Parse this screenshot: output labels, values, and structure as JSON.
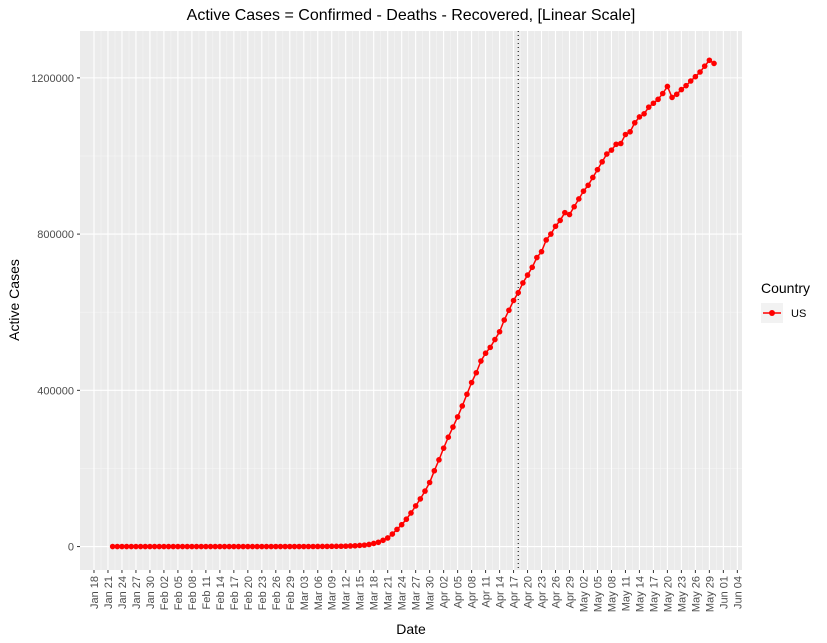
{
  "chart_data": {
    "type": "line",
    "title": "Active Cases = Confirmed - Deaths - Recovered, [Linear Scale]",
    "xlabel": "Date",
    "ylabel": "Active Cases",
    "x_start_date": "2020-01-22",
    "x_tick_labels": [
      "Jan 18",
      "Jan 21",
      "Jan 24",
      "Jan 27",
      "Jan 30",
      "Feb 02",
      "Feb 05",
      "Feb 08",
      "Feb 11",
      "Feb 14",
      "Feb 17",
      "Feb 20",
      "Feb 23",
      "Feb 26",
      "Feb 29",
      "Mar 03",
      "Mar 06",
      "Mar 09",
      "Mar 12",
      "Mar 15",
      "Mar 18",
      "Mar 21",
      "Mar 24",
      "Mar 27",
      "Mar 30",
      "Apr 02",
      "Apr 05",
      "Apr 08",
      "Apr 11",
      "Apr 14",
      "Apr 17",
      "Apr 20",
      "Apr 23",
      "Apr 26",
      "Apr 29",
      "May 02",
      "May 05",
      "May 08",
      "May 11",
      "May 14",
      "May 17",
      "May 20",
      "May 23",
      "May 26",
      "May 29",
      "Jun 01",
      "Jun 04"
    ],
    "x_tick_dates": [
      "2020-01-18",
      "2020-01-21",
      "2020-01-24",
      "2020-01-27",
      "2020-01-30",
      "2020-02-02",
      "2020-02-05",
      "2020-02-08",
      "2020-02-11",
      "2020-02-14",
      "2020-02-17",
      "2020-02-20",
      "2020-02-23",
      "2020-02-26",
      "2020-02-29",
      "2020-03-03",
      "2020-03-06",
      "2020-03-09",
      "2020-03-12",
      "2020-03-15",
      "2020-03-18",
      "2020-03-21",
      "2020-03-24",
      "2020-03-27",
      "2020-03-30",
      "2020-04-02",
      "2020-04-05",
      "2020-04-08",
      "2020-04-11",
      "2020-04-14",
      "2020-04-17",
      "2020-04-20",
      "2020-04-23",
      "2020-04-26",
      "2020-04-29",
      "2020-05-02",
      "2020-05-05",
      "2020-05-08",
      "2020-05-11",
      "2020-05-14",
      "2020-05-17",
      "2020-05-20",
      "2020-05-23",
      "2020-05-26",
      "2020-05-29",
      "2020-06-01",
      "2020-06-04"
    ],
    "xlim": [
      "2020-01-15",
      "2020-06-05"
    ],
    "vline": {
      "date": "2020-04-18",
      "style": "dotted"
    },
    "y_ticks": [
      0,
      400000,
      800000,
      1200000
    ],
    "y_tick_labels": [
      "0",
      "400000",
      "800000",
      "1200000"
    ],
    "ylim": [
      -60000,
      1320000
    ],
    "grid": true,
    "legend": {
      "title": "Country",
      "position": "right"
    },
    "series": [
      {
        "name": "US",
        "color": "#ff0000",
        "values": [
          1,
          1,
          2,
          2,
          5,
          5,
          5,
          5,
          5,
          7,
          8,
          8,
          11,
          11,
          11,
          11,
          11,
          11,
          11,
          11,
          12,
          12,
          13,
          13,
          13,
          13,
          13,
          13,
          13,
          13,
          15,
          15,
          15,
          51,
          51,
          57,
          58,
          60,
          68,
          74,
          98,
          118,
          149,
          200,
          250,
          380,
          450,
          530,
          620,
          800,
          1100,
          1500,
          2000,
          2900,
          3700,
          5400,
          8000,
          11000,
          16000,
          22000,
          32000,
          44000,
          56000,
          70000,
          86000,
          104000,
          122000,
          142000,
          164000,
          194000,
          222000,
          252000,
          280000,
          306000,
          332000,
          360000,
          390000,
          420000,
          445000,
          475000,
          495000,
          510000,
          530000,
          550000,
          580000,
          605000,
          630000,
          650000,
          675000,
          695000,
          715000,
          740000,
          755000,
          785000,
          800000,
          820000,
          835000,
          855000,
          850000,
          870000,
          890000,
          910000,
          925000,
          945000,
          965000,
          985000,
          1005000,
          1015000,
          1030000,
          1032000,
          1055000,
          1062000,
          1085000,
          1100000,
          1108000,
          1125000,
          1135000,
          1145000,
          1160000,
          1178000,
          1150000,
          1158000,
          1170000,
          1180000,
          1192000,
          1203000,
          1215000,
          1230000,
          1245000,
          1237000
        ]
      }
    ]
  }
}
